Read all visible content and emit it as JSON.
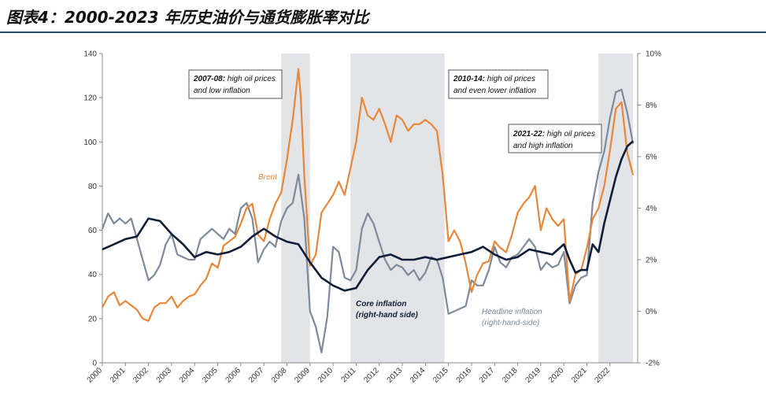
{
  "figure": {
    "title": "图表4：2000-2023 年历史油价与通货膨胀率对比"
  },
  "colors": {
    "brent": "#E8873A",
    "core": "#0F1E38",
    "headline": "#7C8A99",
    "shade": "#E2E4E7"
  },
  "chart_data": {
    "type": "line",
    "title": "图表4：2000-2023 年历史油价与通货膨胀率对比",
    "x_range": [
      2000,
      2023.2
    ],
    "x_ticks": [
      "2000",
      "2001",
      "2002",
      "2003",
      "2004",
      "2005",
      "2006",
      "2007",
      "2008",
      "2009",
      "2010",
      "2011",
      "2012",
      "2013",
      "2014",
      "2015",
      "2016",
      "2017",
      "2018",
      "2019",
      "2020",
      "2021",
      "2022"
    ],
    "y_left": {
      "range": [
        0,
        140
      ],
      "ticks": [
        "0",
        "20",
        "40",
        "60",
        "80",
        "100",
        "120",
        "140"
      ]
    },
    "y_right": {
      "range": [
        -2,
        10
      ],
      "ticks": [
        "-2%",
        "0%",
        "2%",
        "4%",
        "6%",
        "8%",
        "10%"
      ]
    },
    "grid": false,
    "shaded_periods": [
      [
        2007.75,
        2009.0
      ],
      [
        2010.75,
        2014.83
      ],
      [
        2021.5,
        2023.0
      ]
    ],
    "series": [
      {
        "name": "Brent",
        "axis": "left",
        "x": [
          2000.0,
          2000.25,
          2000.5,
          2000.75,
          2001.0,
          2001.25,
          2001.5,
          2001.75,
          2002.0,
          2002.25,
          2002.5,
          2002.75,
          2003.0,
          2003.25,
          2003.5,
          2003.75,
          2004.0,
          2004.25,
          2004.5,
          2004.75,
          2005.0,
          2005.25,
          2005.5,
          2005.75,
          2006.0,
          2006.25,
          2006.5,
          2006.75,
          2007.0,
          2007.25,
          2007.5,
          2007.75,
          2008.0,
          2008.25,
          2008.5,
          2008.6,
          2008.75,
          2009.0,
          2009.25,
          2009.5,
          2009.75,
          2010.0,
          2010.25,
          2010.5,
          2010.75,
          2011.0,
          2011.25,
          2011.5,
          2011.75,
          2012.0,
          2012.25,
          2012.5,
          2012.75,
          2013.0,
          2013.25,
          2013.5,
          2013.75,
          2014.0,
          2014.25,
          2014.5,
          2014.75,
          2015.0,
          2015.25,
          2015.5,
          2015.75,
          2016.0,
          2016.25,
          2016.5,
          2016.75,
          2017.0,
          2017.25,
          2017.5,
          2017.75,
          2018.0,
          2018.25,
          2018.5,
          2018.75,
          2019.0,
          2019.25,
          2019.5,
          2019.75,
          2020.0,
          2020.25,
          2020.5,
          2020.75,
          2021.0,
          2021.25,
          2021.5,
          2021.75,
          2022.0,
          2022.25,
          2022.5,
          2022.75,
          2023.0
        ],
        "values": [
          25,
          30,
          32,
          26,
          28,
          26,
          24,
          20,
          19,
          25,
          27,
          27,
          30,
          25,
          28,
          30,
          31,
          35,
          38,
          45,
          43,
          53,
          55,
          57,
          63,
          70,
          72,
          58,
          55,
          65,
          72,
          77,
          92,
          110,
          133,
          120,
          85,
          44,
          49,
          68,
          72,
          76,
          82,
          76,
          88,
          100,
          120,
          112,
          110,
          115,
          108,
          100,
          112,
          110,
          105,
          108,
          108,
          110,
          108,
          105,
          85,
          55,
          60,
          55,
          45,
          32,
          40,
          45,
          46,
          55,
          52,
          50,
          58,
          68,
          72,
          75,
          80,
          60,
          70,
          65,
          62,
          65,
          28,
          40,
          42,
          52,
          65,
          70,
          80,
          96,
          115,
          118,
          95,
          85
        ]
      },
      {
        "name": "Core inflation (right-hand side)",
        "axis": "right",
        "x": [
          2000.0,
          2000.5,
          2001.0,
          2001.5,
          2002.0,
          2002.5,
          2003.0,
          2003.5,
          2004.0,
          2004.5,
          2005.0,
          2005.5,
          2006.0,
          2006.5,
          2007.0,
          2007.5,
          2008.0,
          2008.5,
          2009.0,
          2009.5,
          2010.0,
          2010.5,
          2011.0,
          2011.5,
          2012.0,
          2012.5,
          2013.0,
          2013.5,
          2014.0,
          2014.5,
          2015.0,
          2015.5,
          2016.0,
          2016.5,
          2017.0,
          2017.5,
          2018.0,
          2018.5,
          2019.0,
          2019.5,
          2020.0,
          2020.25,
          2020.5,
          2020.75,
          2021.0,
          2021.25,
          2021.5,
          2021.75,
          2022.0,
          2022.25,
          2022.5,
          2022.75,
          2023.0
        ],
        "values": [
          2.4,
          2.6,
          2.8,
          2.9,
          3.6,
          3.5,
          3.0,
          2.6,
          2.1,
          2.3,
          2.2,
          2.3,
          2.5,
          2.9,
          3.2,
          2.9,
          2.7,
          2.6,
          1.9,
          1.3,
          1.0,
          0.8,
          0.9,
          1.6,
          2.1,
          2.2,
          2.0,
          2.0,
          2.1,
          2.0,
          2.1,
          2.2,
          2.3,
          2.5,
          2.2,
          2.0,
          2.1,
          2.4,
          2.3,
          2.2,
          2.6,
          2.0,
          1.5,
          1.6,
          1.6,
          2.6,
          2.3,
          3.4,
          4.3,
          5.2,
          5.9,
          6.4,
          6.6
        ]
      },
      {
        "name": "Headline inflation (right-hand-side)",
        "axis": "right",
        "x": [
          2000.0,
          2000.25,
          2000.5,
          2000.75,
          2001.0,
          2001.25,
          2001.5,
          2001.75,
          2002.0,
          2002.25,
          2002.5,
          2002.75,
          2003.0,
          2003.25,
          2003.5,
          2003.75,
          2004.0,
          2004.25,
          2004.5,
          2004.75,
          2005.0,
          2005.25,
          2005.5,
          2005.75,
          2006.0,
          2006.25,
          2006.5,
          2006.75,
          2007.0,
          2007.25,
          2007.5,
          2007.75,
          2008.0,
          2008.25,
          2008.5,
          2008.75,
          2009.0,
          2009.25,
          2009.5,
          2009.75,
          2010.0,
          2010.25,
          2010.5,
          2010.75,
          2011.0,
          2011.25,
          2011.5,
          2011.75,
          2012.0,
          2012.25,
          2012.5,
          2012.75,
          2013.0,
          2013.25,
          2013.5,
          2013.75,
          2014.0,
          2014.25,
          2014.5,
          2014.75,
          2015.0,
          2015.25,
          2015.5,
          2015.75,
          2016.0,
          2016.25,
          2016.5,
          2016.75,
          2017.0,
          2017.25,
          2017.5,
          2017.75,
          2018.0,
          2018.25,
          2018.5,
          2018.75,
          2019.0,
          2019.25,
          2019.5,
          2019.75,
          2020.0,
          2020.25,
          2020.5,
          2020.75,
          2021.0,
          2021.25,
          2021.5,
          2021.75,
          2022.0,
          2022.25,
          2022.5,
          2022.75,
          2023.0
        ],
        "values": [
          3.2,
          3.8,
          3.4,
          3.6,
          3.4,
          3.6,
          2.8,
          2.0,
          1.2,
          1.4,
          1.8,
          2.6,
          3.0,
          2.2,
          2.1,
          2.0,
          2.0,
          2.8,
          3.0,
          3.2,
          3.0,
          2.8,
          3.2,
          3.0,
          4.0,
          4.2,
          3.6,
          1.9,
          2.4,
          2.7,
          2.5,
          3.5,
          4.0,
          4.2,
          5.3,
          3.6,
          0.0,
          -0.6,
          -1.6,
          -0.2,
          2.5,
          2.3,
          1.3,
          1.2,
          1.6,
          3.2,
          3.8,
          3.4,
          2.7,
          2.0,
          1.6,
          1.8,
          1.7,
          1.4,
          1.6,
          1.2,
          1.5,
          2.1,
          2.0,
          1.3,
          -0.1,
          0.0,
          0.1,
          0.2,
          1.2,
          1.0,
          1.0,
          1.6,
          2.5,
          1.9,
          1.7,
          2.1,
          2.2,
          2.5,
          2.8,
          2.5,
          1.6,
          1.9,
          1.7,
          1.8,
          2.3,
          0.3,
          1.0,
          1.3,
          1.4,
          4.2,
          5.4,
          6.2,
          7.5,
          8.5,
          8.6,
          7.7,
          6.5
        ]
      }
    ],
    "annotations": [
      {
        "bold": "2007-08:",
        "rest": " high oil prices",
        "line2": "and low inflation"
      },
      {
        "bold": "2010-14:",
        "rest": " high oil prices",
        "line2": "and even lower inflation"
      },
      {
        "bold": "2021-22:",
        "rest": " high oil prices",
        "line2": "and high inflation"
      }
    ],
    "series_labels": {
      "brent": "Brent",
      "core_line1": "Core inflation",
      "core_line2": "(right-hand side)",
      "headline_line1": "Headline inflation",
      "headline_line2": "(right-hand-side)"
    }
  }
}
